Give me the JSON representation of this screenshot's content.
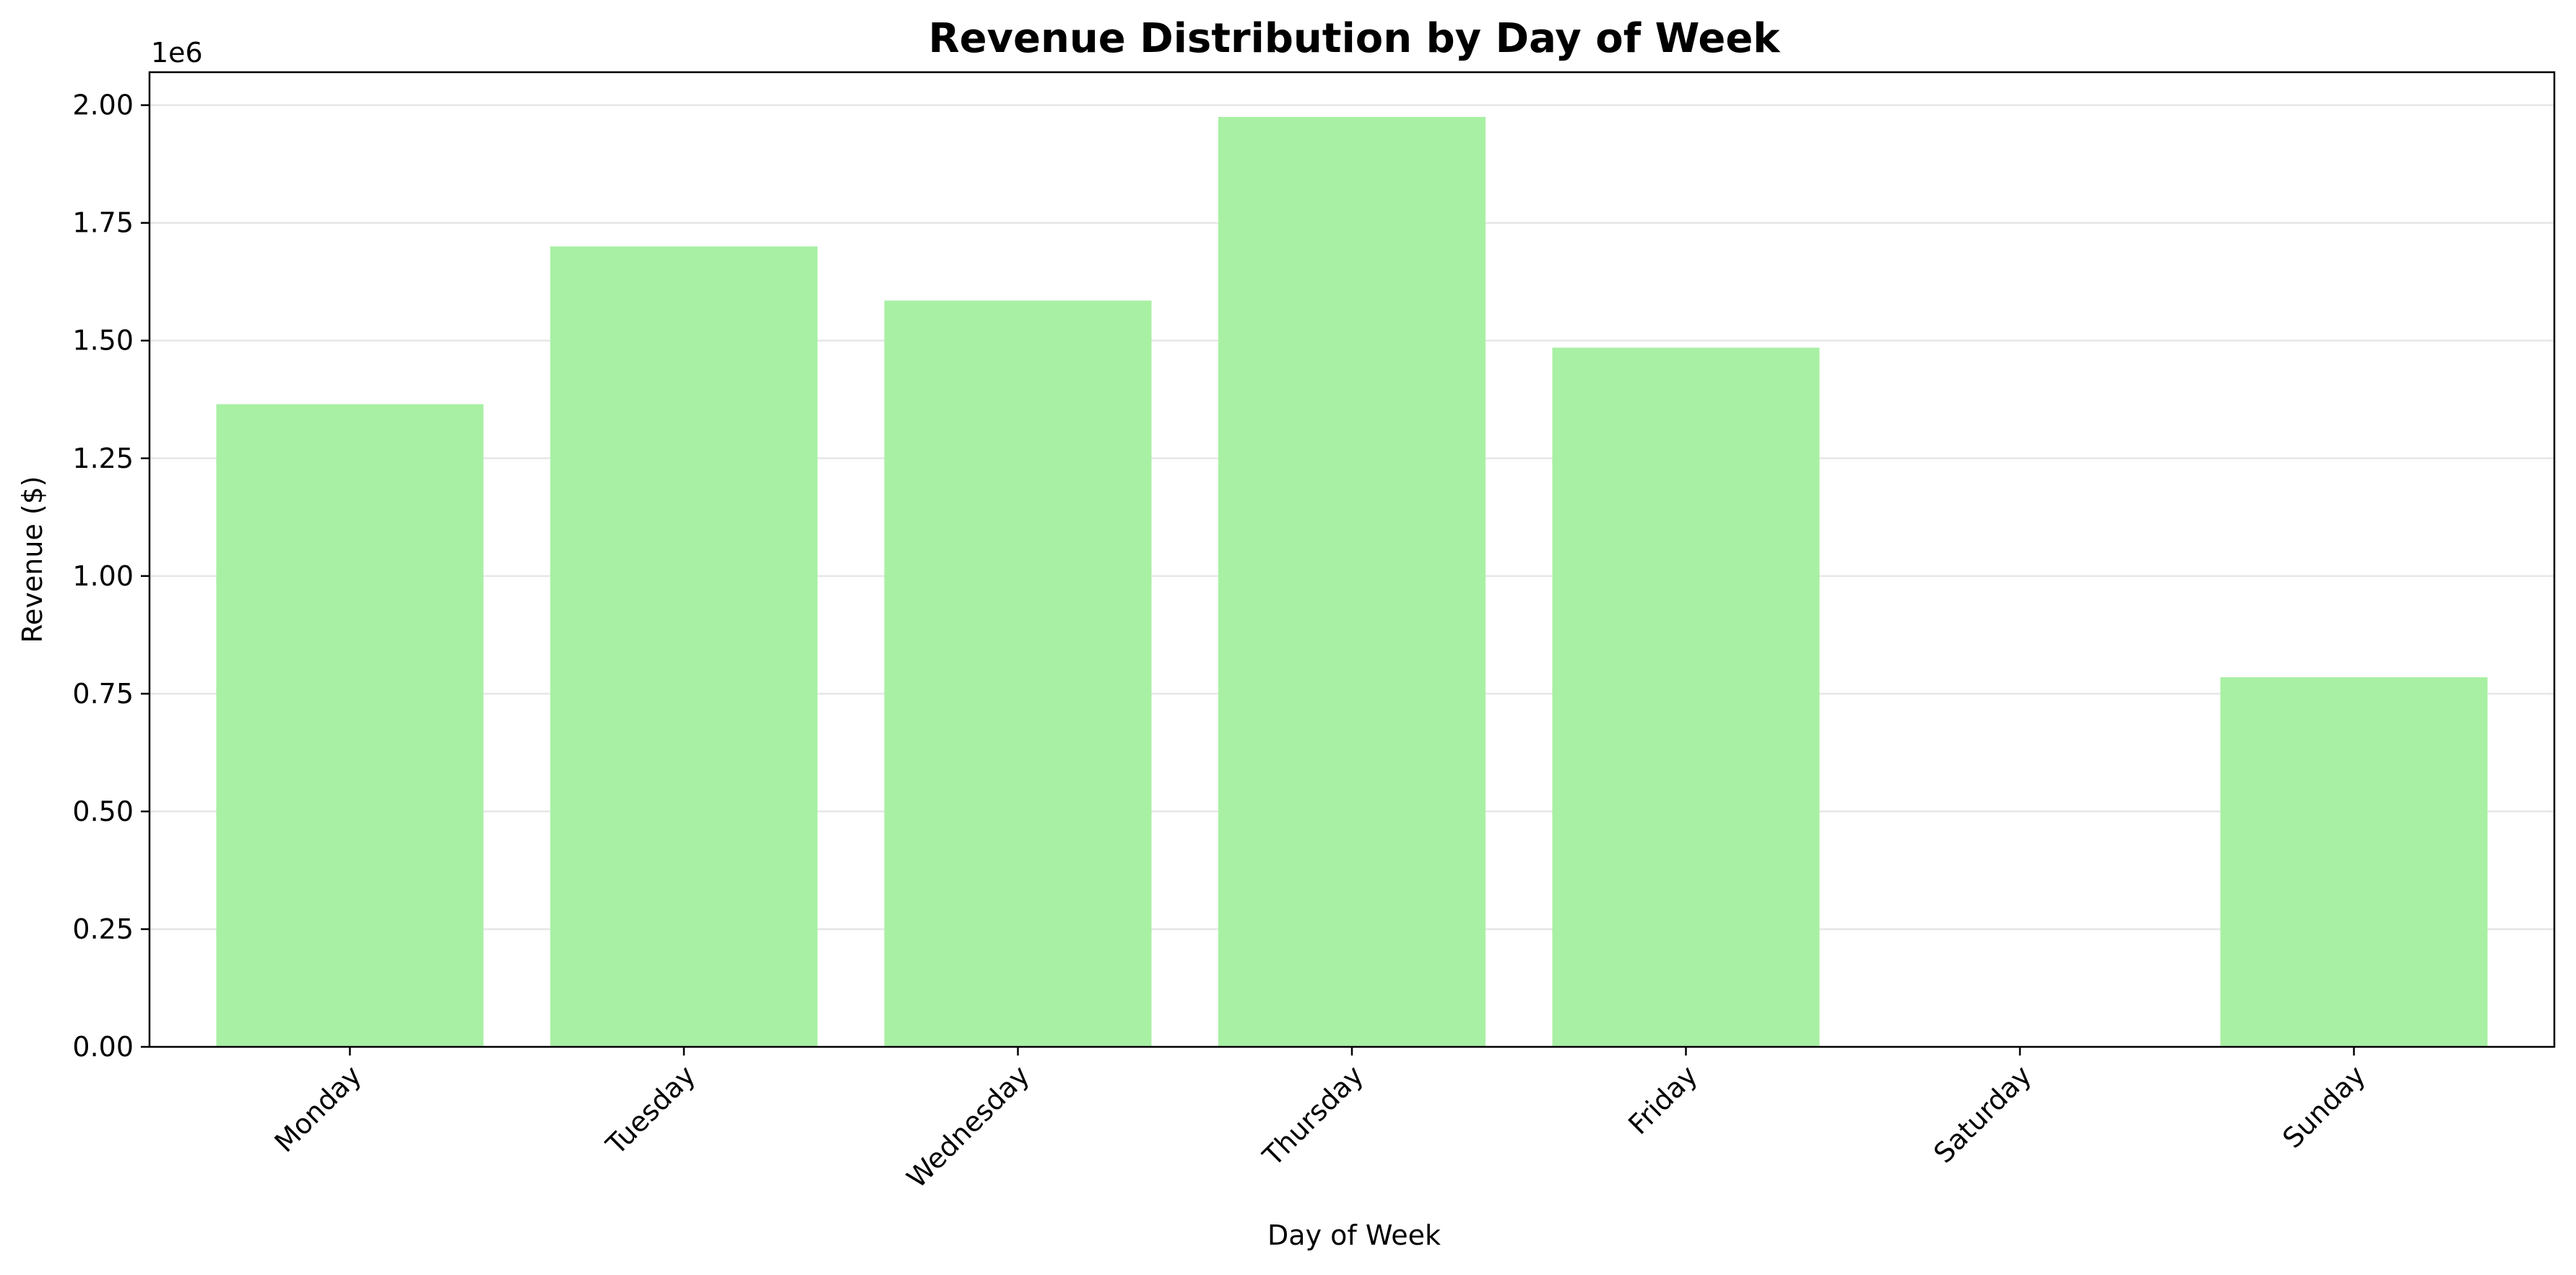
{
  "chart_data": {
    "type": "bar",
    "title": "Revenue Distribution by Day of Week",
    "xlabel": "Day of Week",
    "ylabel": "Revenue ($)",
    "y_offset_label": "1e6",
    "categories": [
      "Monday",
      "Tuesday",
      "Wednesday",
      "Thursday",
      "Friday",
      "Saturday",
      "Sunday"
    ],
    "values": [
      1365000,
      1700000,
      1585000,
      1975000,
      1485000,
      0,
      785000
    ],
    "ylim": [
      0,
      2070000
    ],
    "y_ticks": [
      0,
      250000,
      500000,
      750000,
      1000000,
      1250000,
      1500000,
      1750000,
      2000000
    ],
    "y_tick_labels": [
      "0.00",
      "0.25",
      "0.50",
      "0.75",
      "1.00",
      "1.25",
      "1.50",
      "1.75",
      "2.00"
    ],
    "grid": "y",
    "bar_color": "#a8f0a4",
    "x_tick_rotation": "45 degrees"
  }
}
